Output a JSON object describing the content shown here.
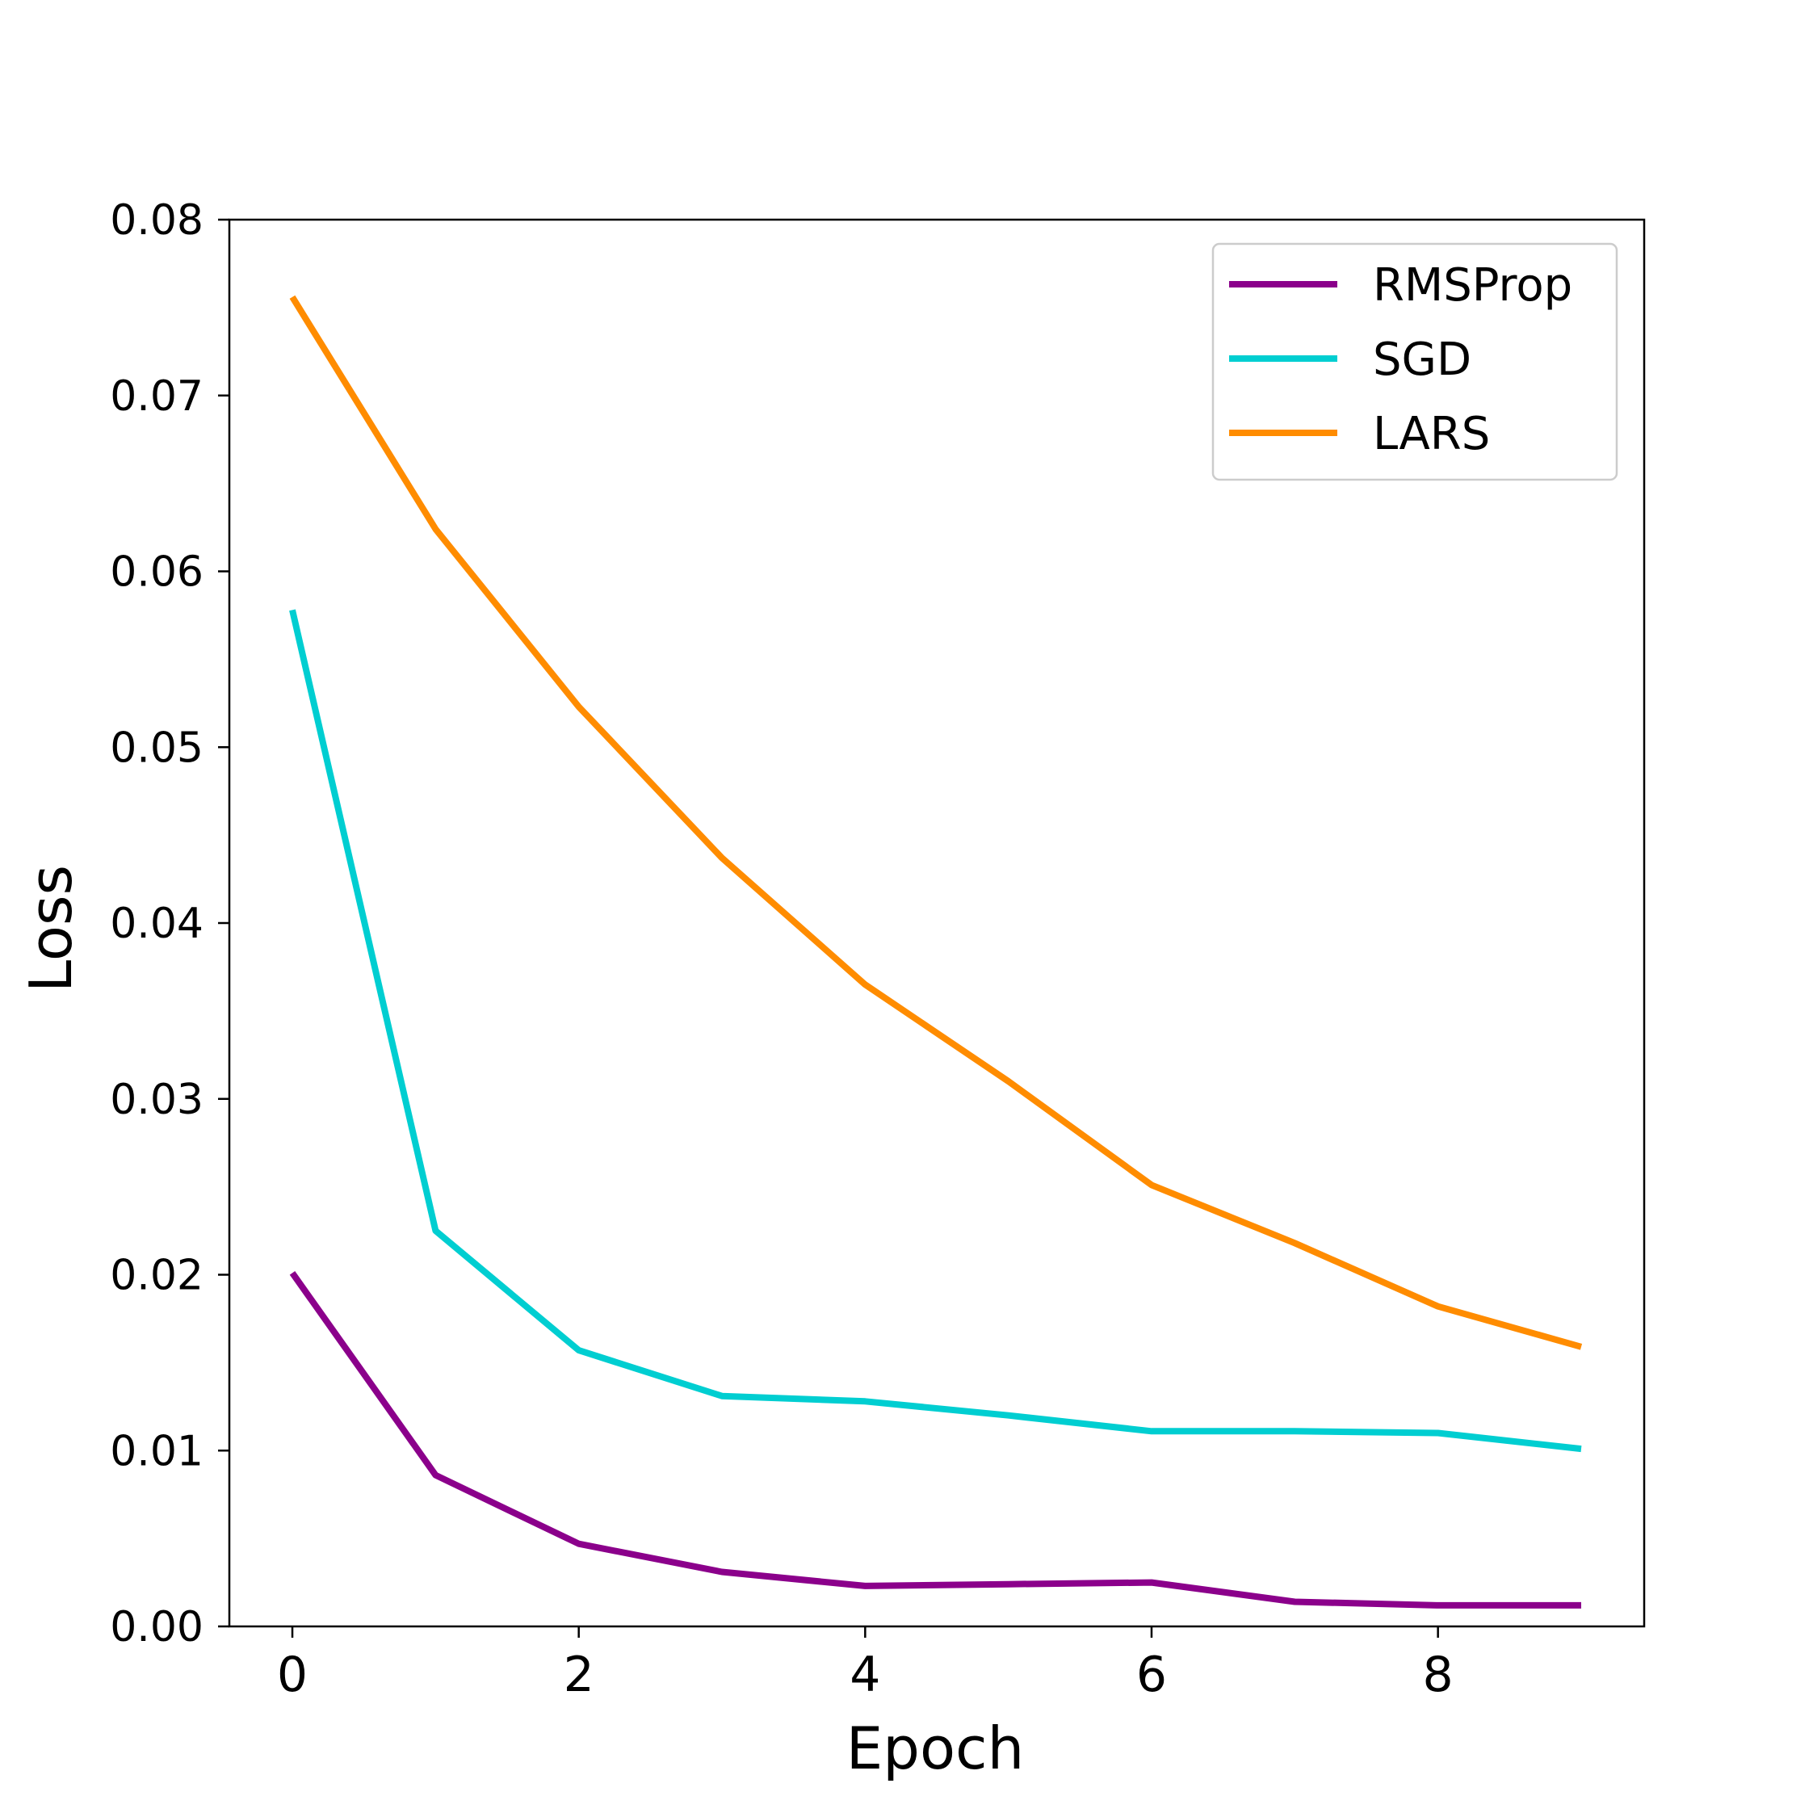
{
  "chart_data": {
    "type": "line",
    "title": "",
    "xlabel": "Epoch",
    "ylabel": "Loss",
    "xlim": [
      -0.44,
      9.44
    ],
    "ylim": [
      0.0,
      0.08
    ],
    "xticks": [
      0,
      2,
      4,
      6,
      8
    ],
    "xtick_labels": [
      "0",
      "2",
      "4",
      "6",
      "8"
    ],
    "yticks": [
      0.0,
      0.01,
      0.02,
      0.03,
      0.04,
      0.05,
      0.06,
      0.07,
      0.08
    ],
    "ytick_labels": [
      "0.00",
      "0.01",
      "0.02",
      "0.03",
      "0.04",
      "0.05",
      "0.06",
      "0.07",
      "0.08"
    ],
    "grid": false,
    "legend_position": "top-right",
    "x": [
      0,
      1,
      2,
      3,
      4,
      5,
      6,
      7,
      8,
      9
    ],
    "series": [
      {
        "name": "RMSProp",
        "color": "#8B008B",
        "values": [
          0.0201,
          0.0086,
          0.0047,
          0.0031,
          0.0023,
          0.0024,
          0.0025,
          0.0014,
          0.0012,
          0.0012
        ]
      },
      {
        "name": "SGD",
        "color": "#00CED1",
        "values": [
          0.0578,
          0.0225,
          0.0157,
          0.0131,
          0.0128,
          0.012,
          0.0111,
          0.0111,
          0.011,
          0.0101
        ]
      },
      {
        "name": "LARS",
        "color": "#FF8C00",
        "values": [
          0.0756,
          0.0624,
          0.0523,
          0.0437,
          0.0365,
          0.031,
          0.0251,
          0.0218,
          0.0182,
          0.0159
        ]
      }
    ]
  }
}
